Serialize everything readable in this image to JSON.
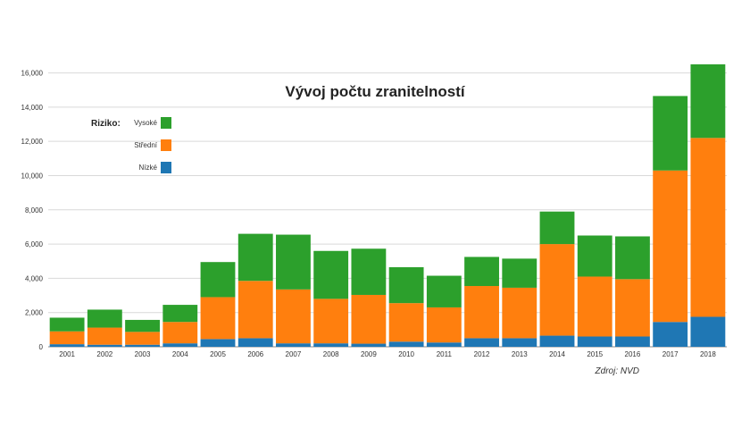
{
  "chart_data": {
    "type": "bar",
    "stacked": true,
    "title": "Vývoj počtu zranitelností",
    "categories": [
      "2001",
      "2002",
      "2003",
      "2004",
      "2005",
      "2006",
      "2007",
      "2008",
      "2009",
      "2010",
      "2011",
      "2012",
      "2013",
      "2014",
      "2015",
      "2016",
      "2017",
      "2018"
    ],
    "series": [
      {
        "name": "Nízké",
        "color": "#1f77b4",
        "values": [
          150,
          120,
          120,
          200,
          450,
          500,
          200,
          200,
          180,
          300,
          250,
          500,
          500,
          650,
          600,
          600,
          1450,
          1750
        ]
      },
      {
        "name": "Střední",
        "color": "#ff7f0e",
        "values": [
          750,
          1000,
          750,
          1250,
          2450,
          3350,
          3150,
          2600,
          2850,
          2250,
          2050,
          3050,
          2950,
          5350,
          3500,
          3350,
          8850,
          10450
        ]
      },
      {
        "name": "Vysoké",
        "color": "#2ca02c",
        "values": [
          800,
          1050,
          700,
          1000,
          2050,
          2750,
          3200,
          2800,
          2700,
          2100,
          1850,
          1700,
          1700,
          1900,
          2400,
          2500,
          4350,
          4300
        ]
      }
    ],
    "ylim": [
      0,
      16500
    ],
    "yticks": [
      "0",
      "2,000",
      "4,000",
      "6,000",
      "8,000",
      "10,000",
      "12,000",
      "14,000",
      "16,000"
    ],
    "grid": true,
    "legend": {
      "title": "Riziko:",
      "placement": "top-left",
      "order": [
        "Vysoké",
        "Střední",
        "Nízké"
      ]
    },
    "source": "Zdroj: NVD"
  }
}
